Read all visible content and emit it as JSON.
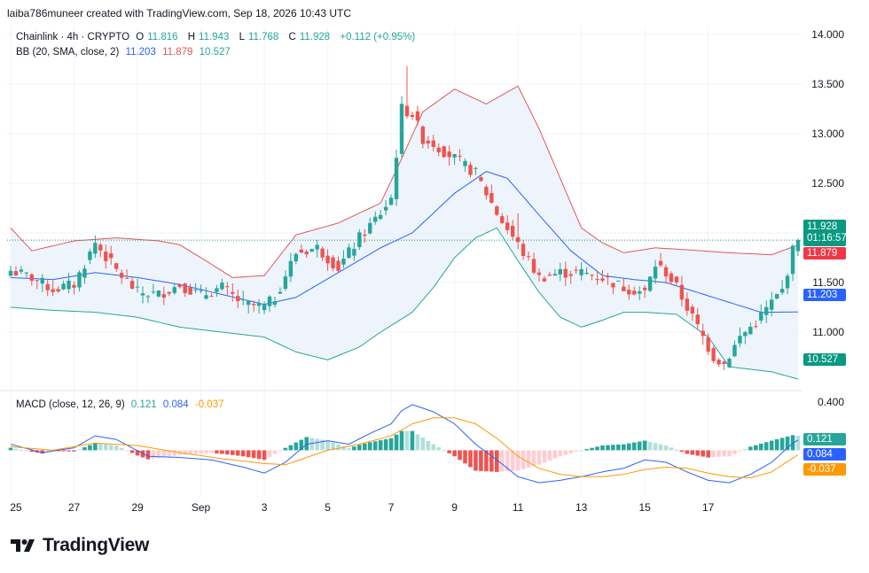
{
  "header": {
    "attribution": "laiba786muneer created with TradingView.com, Sep 18, 2026 10:43 UTC"
  },
  "legend": {
    "symbol": "Chainlink · 4h · CRYPTO",
    "open_label": "O",
    "open": "11.816",
    "high_label": "H",
    "high": "11.943",
    "low_label": "L",
    "low": "11.768",
    "close_label": "C",
    "close": "11.928",
    "change": "+0.112 (+0.95%)",
    "bb_label": "BB (20, SMA, close, 2)",
    "bb_basis": "11.203",
    "bb_upper": "11.879",
    "bb_lower": "10.527",
    "macd_label": "MACD (close, 12, 26, 9)",
    "macd_hist": "0.121",
    "macd_line": "0.084",
    "macd_signal": "-0.037"
  },
  "price_badges": {
    "last": "11.928",
    "countdown": "01:16:57",
    "upper": "11.879",
    "basis": "11.203",
    "lower": "10.527",
    "macd_hist": "0.121",
    "macd_line": "0.084",
    "macd_signal": "-0.037"
  },
  "branding": {
    "logo_text": "TradingView"
  },
  "colors": {
    "up": "#26a69a",
    "down": "#ef5350",
    "up_light": "#b2dfdb",
    "down_light": "#ffcdd2",
    "bb_upper": "#e2555a",
    "bb_basis": "#2962ff",
    "bb_lower": "#26a69a",
    "bb_fill": "#eef4fb",
    "macd_line": "#2962ff",
    "signal_line": "#ff9800",
    "grid": "#f0f3fa",
    "text": "#131722"
  },
  "chart_data": [
    {
      "type": "candlestick",
      "title": "Chainlink · 4h · CRYPTO",
      "y_ticks": [
        "14.000",
        "13.500",
        "13.000",
        "12.500",
        "12.000",
        "11.500",
        "11.000"
      ],
      "ylim": [
        10.42,
        14.08
      ],
      "x_ticks": [
        "25",
        "27",
        "29",
        "Sep",
        "3",
        "5",
        "7",
        "9",
        "11",
        "13",
        "15",
        "17"
      ],
      "x_tick_bar_index": [
        0,
        12,
        24,
        36,
        48,
        60,
        72,
        84,
        96,
        108,
        120,
        132
      ],
      "bar_count": 150,
      "anchors_close": [
        [
          0,
          11.62
        ],
        [
          4,
          11.55
        ],
        [
          8,
          11.43
        ],
        [
          12,
          11.48
        ],
        [
          16,
          11.9
        ],
        [
          20,
          11.62
        ],
        [
          24,
          11.4
        ],
        [
          28,
          11.38
        ],
        [
          32,
          11.48
        ],
        [
          36,
          11.37
        ],
        [
          40,
          11.45
        ],
        [
          44,
          11.28
        ],
        [
          48,
          11.25
        ],
        [
          50,
          11.35
        ],
        [
          54,
          11.8
        ],
        [
          58,
          11.85
        ],
        [
          62,
          11.65
        ],
        [
          66,
          11.95
        ],
        [
          70,
          12.2
        ],
        [
          72,
          12.35
        ],
        [
          74,
          13.25
        ],
        [
          76,
          13.2
        ],
        [
          78,
          12.95
        ],
        [
          80,
          12.9
        ],
        [
          84,
          12.75
        ],
        [
          88,
          12.6
        ],
        [
          92,
          12.2
        ],
        [
          96,
          11.88
        ],
        [
          100,
          11.55
        ],
        [
          104,
          11.6
        ],
        [
          108,
          11.6
        ],
        [
          112,
          11.55
        ],
        [
          116,
          11.45
        ],
        [
          120,
          11.4
        ],
        [
          122,
          11.68
        ],
        [
          124,
          11.6
        ],
        [
          126,
          11.45
        ],
        [
          128,
          11.25
        ],
        [
          131,
          10.95
        ],
        [
          133,
          10.75
        ],
        [
          135,
          10.68
        ],
        [
          138,
          10.95
        ],
        [
          141,
          11.1
        ],
        [
          144,
          11.3
        ],
        [
          146,
          11.42
        ],
        [
          148,
          11.82
        ],
        [
          149,
          11.93
        ]
      ],
      "last_ohlc": {
        "o": 11.816,
        "h": 11.943,
        "l": 11.768,
        "c": 11.928
      },
      "bollinger": {
        "upper_anchors": [
          [
            0,
            12.05
          ],
          [
            4,
            11.82
          ],
          [
            12,
            11.92
          ],
          [
            20,
            11.95
          ],
          [
            28,
            11.92
          ],
          [
            32,
            11.88
          ],
          [
            36,
            11.75
          ],
          [
            42,
            11.55
          ],
          [
            48,
            11.57
          ],
          [
            54,
            11.98
          ],
          [
            62,
            12.1
          ],
          [
            70,
            12.3
          ],
          [
            74,
            12.75
          ],
          [
            78,
            13.22
          ],
          [
            84,
            13.45
          ],
          [
            90,
            13.3
          ],
          [
            96,
            13.48
          ],
          [
            100,
            13.05
          ],
          [
            104,
            12.55
          ],
          [
            108,
            12.05
          ],
          [
            112,
            11.9
          ],
          [
            116,
            11.8
          ],
          [
            122,
            11.85
          ],
          [
            128,
            11.83
          ],
          [
            136,
            11.8
          ],
          [
            144,
            11.78
          ],
          [
            149,
            11.879
          ]
        ],
        "basis_anchors": [
          [
            0,
            11.55
          ],
          [
            8,
            11.53
          ],
          [
            16,
            11.6
          ],
          [
            24,
            11.55
          ],
          [
            32,
            11.48
          ],
          [
            40,
            11.38
          ],
          [
            48,
            11.28
          ],
          [
            54,
            11.35
          ],
          [
            62,
            11.6
          ],
          [
            70,
            11.85
          ],
          [
            76,
            12.0
          ],
          [
            84,
            12.4
          ],
          [
            90,
            12.62
          ],
          [
            94,
            12.55
          ],
          [
            100,
            12.18
          ],
          [
            106,
            11.82
          ],
          [
            112,
            11.57
          ],
          [
            118,
            11.53
          ],
          [
            124,
            11.5
          ],
          [
            130,
            11.4
          ],
          [
            136,
            11.3
          ],
          [
            142,
            11.2
          ],
          [
            149,
            11.203
          ]
        ],
        "lower_anchors": [
          [
            0,
            11.25
          ],
          [
            8,
            11.22
          ],
          [
            16,
            11.2
          ],
          [
            24,
            11.15
          ],
          [
            32,
            11.05
          ],
          [
            40,
            11.0
          ],
          [
            48,
            10.95
          ],
          [
            54,
            10.8
          ],
          [
            60,
            10.72
          ],
          [
            66,
            10.85
          ],
          [
            70,
            11.0
          ],
          [
            76,
            11.2
          ],
          [
            80,
            11.45
          ],
          [
            84,
            11.75
          ],
          [
            88,
            11.95
          ],
          [
            92,
            12.05
          ],
          [
            96,
            11.72
          ],
          [
            100,
            11.4
          ],
          [
            104,
            11.15
          ],
          [
            108,
            11.05
          ],
          [
            112,
            11.12
          ],
          [
            116,
            11.2
          ],
          [
            120,
            11.2
          ],
          [
            126,
            11.18
          ],
          [
            132,
            10.95
          ],
          [
            136,
            10.65
          ],
          [
            144,
            10.6
          ],
          [
            149,
            10.527
          ]
        ]
      }
    },
    {
      "type": "macd",
      "title": "MACD (close, 12, 26, 9)",
      "y_ticks": [
        "0.400"
      ],
      "ylim": [
        -0.38,
        0.46
      ],
      "macd_anchors": [
        [
          0,
          0.05
        ],
        [
          6,
          -0.02
        ],
        [
          12,
          0.02
        ],
        [
          16,
          0.12
        ],
        [
          20,
          0.09
        ],
        [
          26,
          -0.05
        ],
        [
          32,
          -0.06
        ],
        [
          38,
          -0.08
        ],
        [
          44,
          -0.14
        ],
        [
          48,
          -0.19
        ],
        [
          52,
          -0.1
        ],
        [
          56,
          0.05
        ],
        [
          60,
          0.08
        ],
        [
          64,
          0.05
        ],
        [
          68,
          0.14
        ],
        [
          72,
          0.22
        ],
        [
          74,
          0.33
        ],
        [
          76,
          0.38
        ],
        [
          80,
          0.32
        ],
        [
          84,
          0.22
        ],
        [
          88,
          0.05
        ],
        [
          92,
          -0.08
        ],
        [
          96,
          -0.22
        ],
        [
          100,
          -0.27
        ],
        [
          104,
          -0.25
        ],
        [
          108,
          -0.22
        ],
        [
          112,
          -0.18
        ],
        [
          116,
          -0.15
        ],
        [
          120,
          -0.08
        ],
        [
          124,
          -0.1
        ],
        [
          128,
          -0.18
        ],
        [
          132,
          -0.25
        ],
        [
          136,
          -0.27
        ],
        [
          140,
          -0.2
        ],
        [
          144,
          -0.1
        ],
        [
          148,
          0.06
        ],
        [
          149,
          0.084
        ]
      ],
      "signal_anchors": [
        [
          0,
          0.03
        ],
        [
          8,
          0.0
        ],
        [
          16,
          0.06
        ],
        [
          24,
          0.04
        ],
        [
          32,
          -0.02
        ],
        [
          40,
          -0.07
        ],
        [
          48,
          -0.11
        ],
        [
          52,
          -0.12
        ],
        [
          56,
          -0.06
        ],
        [
          60,
          0.0
        ],
        [
          66,
          0.05
        ],
        [
          72,
          0.12
        ],
        [
          76,
          0.22
        ],
        [
          80,
          0.27
        ],
        [
          84,
          0.27
        ],
        [
          88,
          0.22
        ],
        [
          92,
          0.1
        ],
        [
          96,
          -0.05
        ],
        [
          100,
          -0.15
        ],
        [
          104,
          -0.2
        ],
        [
          108,
          -0.22
        ],
        [
          112,
          -0.22
        ],
        [
          116,
          -0.2
        ],
        [
          120,
          -0.16
        ],
        [
          124,
          -0.14
        ],
        [
          128,
          -0.15
        ],
        [
          132,
          -0.19
        ],
        [
          136,
          -0.22
        ],
        [
          140,
          -0.23
        ],
        [
          144,
          -0.18
        ],
        [
          149,
          -0.037
        ]
      ]
    }
  ]
}
